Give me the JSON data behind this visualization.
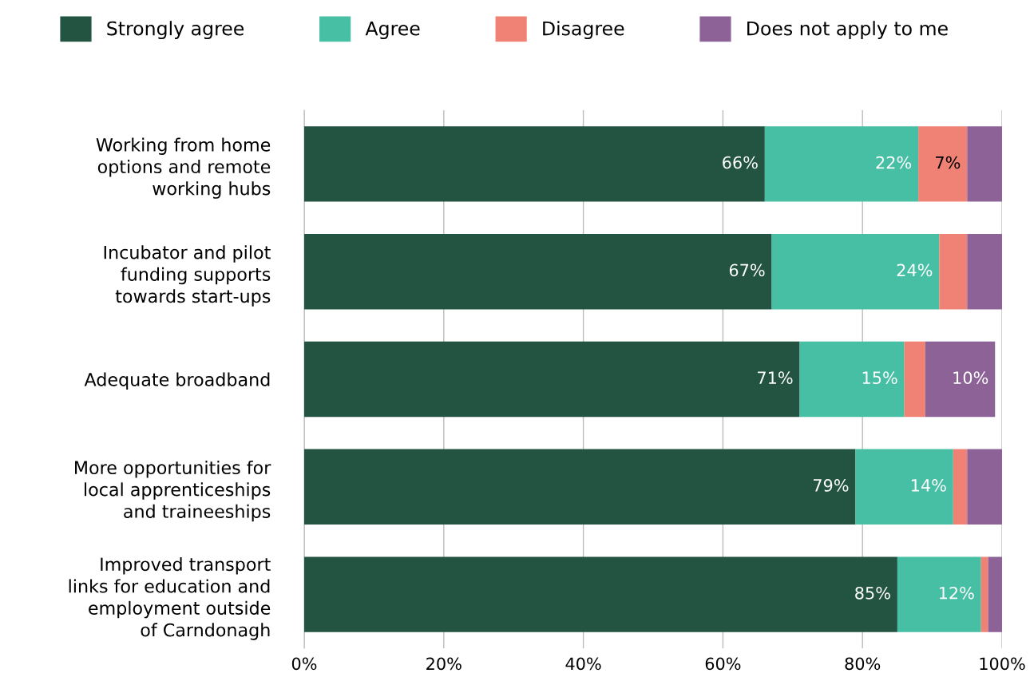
{
  "chart_data": {
    "type": "bar",
    "orientation": "horizontal",
    "stacked": true,
    "categories": [
      "Working from home\noptions and remote\nworking hubs",
      "Incubator and pilot\nfunding supports\ntowards start-ups",
      "Adequate broadband",
      "More opportunities for\nlocal apprenticeships\nand traineeships",
      "Improved transport\nlinks for education and\nemployment outside\nof Carndonagh"
    ],
    "series": [
      {
        "name": "Strongly agree",
        "color": "#235441",
        "values": [
          66,
          67,
          71,
          79,
          85
        ],
        "value_labels": [
          "66%",
          "67%",
          "71%",
          "79%",
          "85%"
        ]
      },
      {
        "name": "Agree",
        "color": "#47bfa4",
        "values": [
          22,
          24,
          15,
          14,
          12
        ],
        "value_labels": [
          "22%",
          "24%",
          "15%",
          "14%",
          "12%"
        ]
      },
      {
        "name": "Disagree",
        "color": "#ef8274",
        "values": [
          7,
          4,
          3,
          2,
          1
        ],
        "value_labels": [
          "7%",
          null,
          null,
          null,
          null
        ]
      },
      {
        "name": "Does not apply to me",
        "color": "#8d6297",
        "values": [
          5,
          5,
          10,
          5,
          2
        ],
        "value_labels": [
          null,
          null,
          "10%",
          null,
          null
        ]
      }
    ],
    "xlim": [
      0,
      100
    ],
    "xticks": [
      {
        "value": 0,
        "label": "0%"
      },
      {
        "value": 20,
        "label": "20%"
      },
      {
        "value": 40,
        "label": "40%"
      },
      {
        "value": 60,
        "label": "60%"
      },
      {
        "value": 80,
        "label": "80%"
      },
      {
        "value": 100,
        "label": "100%"
      }
    ],
    "grid": "x",
    "legend": "top"
  }
}
